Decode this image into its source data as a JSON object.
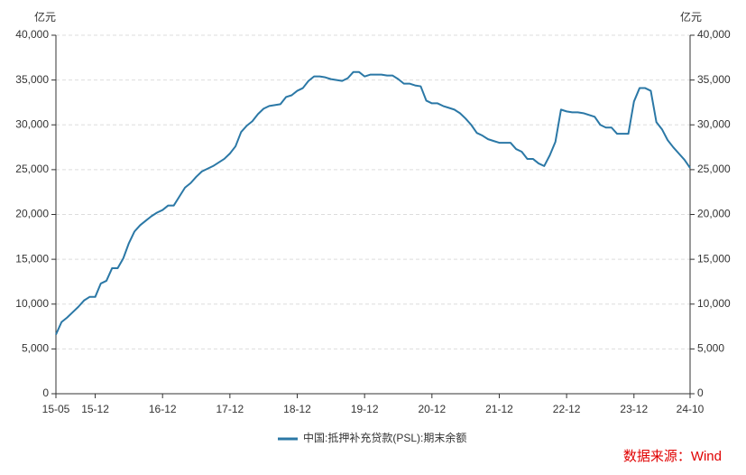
{
  "chart_data": {
    "type": "line",
    "y_label": "亿元",
    "y2_label": "亿元",
    "annotation": "数据来源：Wind",
    "categories": [
      "15-05",
      null,
      null,
      null,
      null,
      null,
      null,
      "15-12",
      null,
      null,
      null,
      null,
      null,
      null,
      null,
      null,
      null,
      null,
      null,
      "16-12",
      null,
      null,
      null,
      null,
      null,
      null,
      null,
      null,
      null,
      null,
      null,
      "17-12",
      null,
      null,
      null,
      null,
      null,
      null,
      null,
      null,
      null,
      null,
      null,
      "18-12",
      null,
      null,
      null,
      null,
      null,
      null,
      null,
      null,
      null,
      null,
      null,
      "19-12",
      null,
      null,
      null,
      null,
      null,
      null,
      null,
      null,
      null,
      null,
      null,
      "20-12",
      null,
      null,
      null,
      null,
      null,
      null,
      null,
      null,
      null,
      null,
      null,
      "21-12",
      null,
      null,
      null,
      null,
      null,
      null,
      null,
      null,
      null,
      null,
      null,
      "22-12",
      null,
      null,
      null,
      null,
      null,
      null,
      null,
      null,
      null,
      null,
      null,
      "23-12",
      null,
      null,
      null,
      null,
      null,
      null,
      null,
      null,
      null,
      "24-10"
    ],
    "series": [
      {
        "name": "中国:抵押补充贷款(PSL):期末余额",
        "color": "#2b78a6",
        "values": [
          6600,
          8000,
          8500,
          9100,
          9700,
          10400,
          10800,
          10800,
          12300,
          12600,
          14000,
          14000,
          15100,
          16800,
          18100,
          18800,
          19300,
          19800,
          20200,
          20500,
          21000,
          21000,
          22000,
          23000,
          23500,
          24200,
          24800,
          25100,
          25400,
          25800,
          26200,
          26800,
          27600,
          29200,
          29900,
          30400,
          31200,
          31800,
          32100,
          32200,
          32300,
          33100,
          33300,
          33800,
          34100,
          34900,
          35400,
          35400,
          35300,
          35100,
          35000,
          34900,
          35200,
          35900,
          35900,
          35400,
          35600,
          35600,
          35600,
          35500,
          35500,
          35100,
          34600,
          34600,
          34400,
          34300,
          32700,
          32400,
          32400,
          32100,
          31900,
          31700,
          31300,
          30700,
          30000,
          29100,
          28800,
          28400,
          28200,
          28000,
          28000,
          28000,
          27300,
          27000,
          26200,
          26200,
          25700,
          25400,
          26600,
          28100,
          31700,
          31500,
          31400,
          31400,
          31300,
          31100,
          30900,
          30000,
          29700,
          29700,
          29000,
          29000,
          29000,
          32600,
          34100,
          34100,
          33800,
          30300,
          29500,
          28300,
          27500,
          26800,
          26100,
          25200
        ]
      }
    ],
    "ylim": [
      0,
      40000
    ],
    "yticks": [
      0,
      {
        "value": 5000,
        "label": "5,000"
      },
      {
        "value": 10000,
        "label": "10,000"
      },
      {
        "value": 15000,
        "label": "15,000"
      },
      {
        "value": 20000,
        "label": "20,000"
      },
      {
        "value": 25000,
        "label": "25,000"
      },
      {
        "value": 30000,
        "label": "30,000"
      },
      {
        "value": 35000,
        "label": "35,000"
      },
      {
        "value": 40000,
        "label": "40,000"
      }
    ],
    "y2lim": [
      0,
      40000
    ],
    "y2ticks": [
      0,
      {
        "value": 5000,
        "label": "5,000"
      },
      {
        "value": 10000,
        "label": "10,000"
      },
      {
        "value": 15000,
        "label": "15,000"
      },
      {
        "value": 20000,
        "label": "20,000"
      },
      {
        "value": 25000,
        "label": "25,000"
      },
      {
        "value": 30000,
        "label": "30,000"
      },
      {
        "value": 35000,
        "label": "35,000"
      },
      {
        "value": 40000,
        "label": "40,000"
      }
    ],
    "grid": true
  }
}
